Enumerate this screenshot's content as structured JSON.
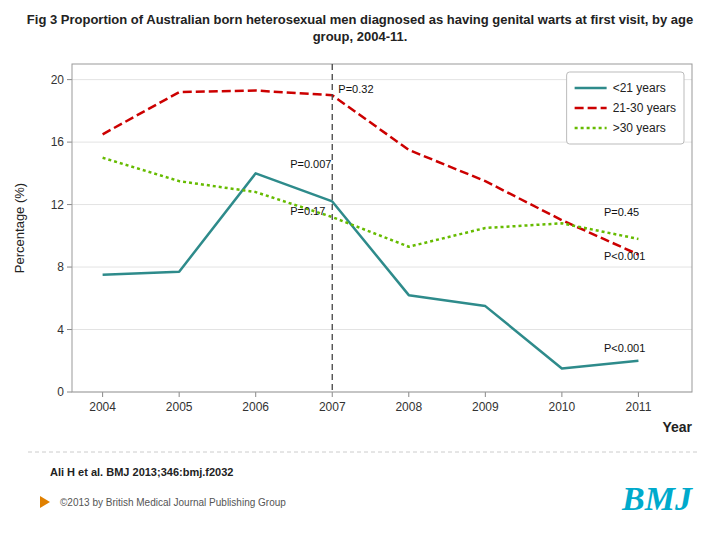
{
  "chart_data": {
    "type": "line",
    "title": "Fig 3  Proportion of Australian born heterosexual men diagnosed as having genital warts at first visit, by age group, 2004-11.",
    "x_label": "Year",
    "y_label": "Percentage (%)",
    "x": [
      2004,
      2005,
      2006,
      2007,
      2008,
      2009,
      2010,
      2011
    ],
    "series": [
      {
        "name": "<21 years",
        "color": "#2e8b8b",
        "line_style": "solid",
        "values": [
          7.5,
          7.7,
          14.0,
          12.2,
          6.2,
          5.5,
          1.5,
          2.0
        ]
      },
      {
        "name": "21-30 years",
        "color": "#cc0000",
        "line_style": "dashed",
        "values": [
          16.5,
          19.2,
          19.3,
          19.0,
          15.5,
          13.5,
          11.0,
          8.8
        ]
      },
      {
        "name": ">30 years",
        "color": "#66bb00",
        "line_style": "dotted",
        "values": [
          15.0,
          13.5,
          12.8,
          11.2,
          9.3,
          10.5,
          10.8,
          9.8
        ]
      }
    ],
    "xlim": [
      2003.6,
      2011.7
    ],
    "xticks": [
      2004,
      2005,
      2006,
      2007,
      2008,
      2009,
      2010,
      2011
    ],
    "ylim": [
      0,
      21
    ],
    "yticks": [
      0,
      4,
      8,
      12,
      16,
      20
    ],
    "grid": true,
    "legend": "upper right",
    "vlines": [
      2007
    ],
    "annotations": [
      {
        "x": 2007.08,
        "y": 19.4,
        "text": "P=0.32"
      },
      {
        "x": 2006.45,
        "y": 14.6,
        "text": "P=0.007"
      },
      {
        "x": 2006.45,
        "y": 11.6,
        "text": "P=0.17"
      },
      {
        "x": 2010.55,
        "y": 11.5,
        "text": "P=0.45"
      },
      {
        "x": 2010.55,
        "y": 8.7,
        "text": "P<0.001"
      },
      {
        "x": 2010.55,
        "y": 2.8,
        "text": "P<0.001"
      }
    ],
    "citation": "Ali H et al. BMJ 2013;346:bmj.f2032",
    "footer": "©2013 by British Medical Journal Publishing Group",
    "logo": "BMJ"
  }
}
